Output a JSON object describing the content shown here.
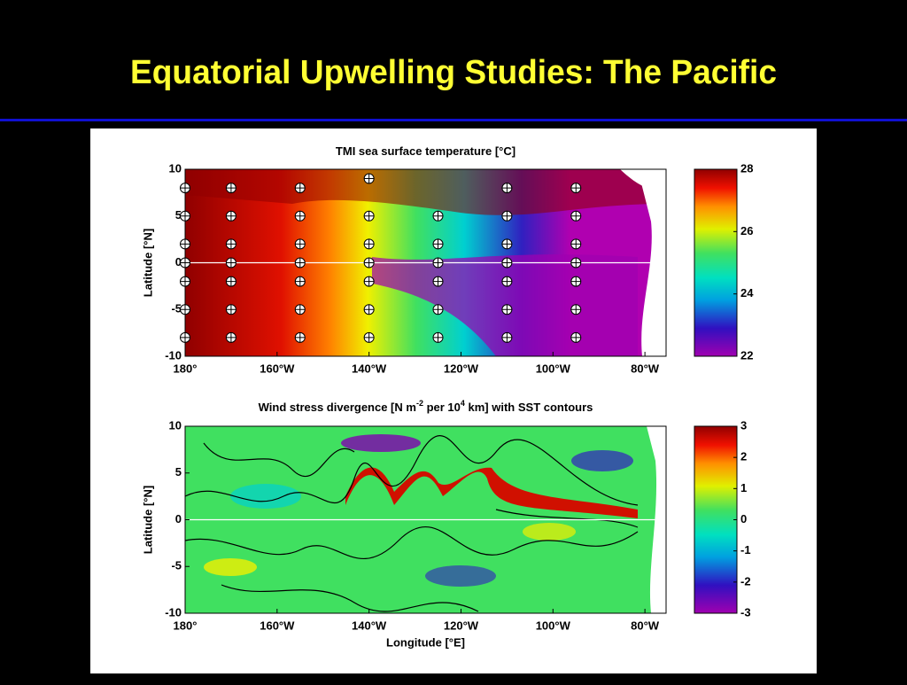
{
  "slide_title": "Equatorial Upwelling Studies: The Pacific",
  "chart_data": [
    {
      "type": "heatmap",
      "title": [
        "TMI sea surface temperature [°C]"
      ],
      "ylabel": "Latitude [°N]",
      "xlim": [
        180,
        284.6
      ],
      "ylim": [
        -10,
        10
      ],
      "xticks": [
        {
          "value": 180,
          "label": "180°"
        },
        {
          "value": 200,
          "label": "160°W"
        },
        {
          "value": 220,
          "label": "140°W"
        },
        {
          "value": 240,
          "label": "120°W"
        },
        {
          "value": 260,
          "label": "100°W"
        },
        {
          "value": 280,
          "label": "80°W"
        }
      ],
      "yticks": [
        -10,
        -5,
        0,
        5,
        10
      ],
      "colorbar_lim": [
        22,
        28
      ],
      "colorbar_ticks": [
        22,
        24,
        26,
        28
      ],
      "markers": {
        "x": [
          180,
          180,
          180,
          180,
          180,
          180,
          180,
          190,
          190,
          190,
          190,
          190,
          190,
          190,
          205,
          205,
          205,
          205,
          205,
          205,
          205,
          220,
          220,
          220,
          220,
          220,
          220,
          220,
          235,
          235,
          235,
          235,
          235,
          235,
          250,
          250,
          250,
          250,
          250,
          250,
          250,
          265,
          265,
          265,
          265,
          265,
          265,
          265
        ],
        "y": [
          8,
          5,
          2,
          0,
          -2,
          -5,
          -8,
          8,
          5,
          2,
          0,
          -2,
          -5,
          -8,
          8,
          5,
          2,
          0,
          -2,
          -5,
          -8,
          9,
          5,
          2,
          0,
          -2,
          -5,
          -8,
          5,
          2,
          0,
          -2,
          -5,
          -8,
          8,
          5,
          2,
          0,
          -2,
          -5,
          -8,
          8,
          5,
          2,
          0,
          -2,
          -5,
          -8
        ]
      }
    },
    {
      "type": "heatmap",
      "title": [
        "Wind stress divergence [N m",
        "-2",
        " per 10",
        "4",
        " km] with SST contours"
      ],
      "ylabel": "Latitude [°N]",
      "xlabel": "Longitude [°E]",
      "xlim": [
        180,
        284.6
      ],
      "ylim": [
        -10,
        10
      ],
      "xticks": [
        {
          "value": 180,
          "label": "180°"
        },
        {
          "value": 200,
          "label": "160°W"
        },
        {
          "value": 220,
          "label": "140°W"
        },
        {
          "value": 240,
          "label": "120°W"
        },
        {
          "value": 260,
          "label": "100°W"
        },
        {
          "value": 280,
          "label": "80°W"
        }
      ],
      "yticks": [
        -10,
        -5,
        0,
        5,
        10
      ],
      "colorbar_lim": [
        -3,
        3
      ],
      "colorbar_ticks": [
        -3,
        -2,
        -1,
        0,
        1,
        2,
        3
      ]
    }
  ]
}
